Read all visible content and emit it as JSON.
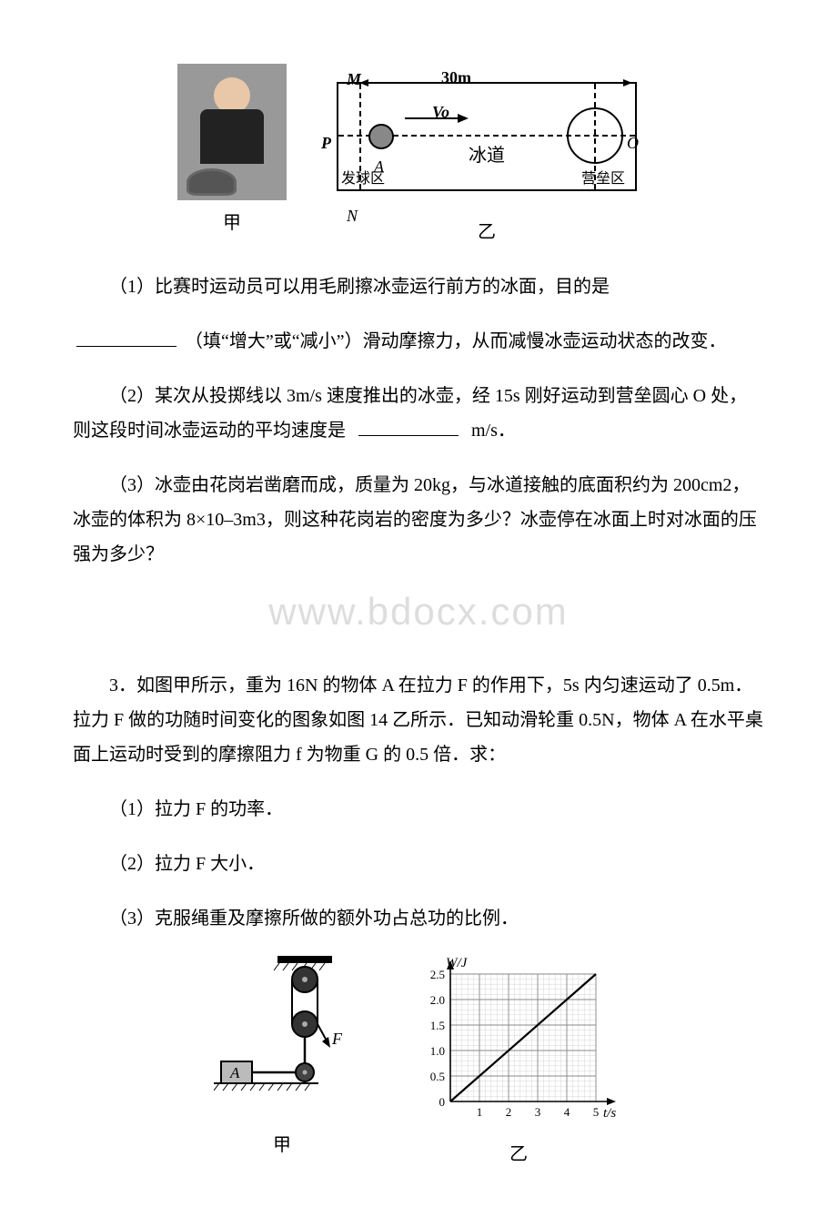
{
  "fig1": {
    "caption_left": "甲",
    "caption_right": "乙",
    "label_M": "M",
    "label_N": "N",
    "label_P": "P",
    "label_A": "A",
    "label_O": "O",
    "distance": "30m",
    "velocity": "Vo",
    "text_icetrack": "冰道",
    "text_launch": "发球区",
    "text_camp": "营垒区"
  },
  "q2": {
    "p1_prefix": "（1）比赛时运动员可以用毛刷擦冰壶运行前方的冰面，目的是",
    "p1_hint": "（填“增大”或“减小”）滑动摩擦力，从而减慢冰壶运动状态的改变．",
    "p2_a": "（2）某次从投掷线以 3m/s 速度推出的冰壶，经 15s 刚好运动到营垒圆心 O 处，则这段时间冰壶运动的平均速度是",
    "p2_unit": "m/s．",
    "p3": "（3）冰壶由花岗岩凿磨而成，质量为 20kg，与冰道接触的底面积约为 200cm2，冰壶的体积为 8×10–3m3，则这种花岗岩的密度为多少？冰壶停在冰面上时对冰面的压强为多少？"
  },
  "watermark": "www.bdocx.com",
  "q3": {
    "stem": "3．如图甲所示，重为 16N 的物体 A 在拉力 F 的作用下，5s 内匀速运动了 0.5m．拉力 F 做的功随时间变化的图象如图 14 乙所示．已知动滑轮重 0.5N，物体 A 在水平桌面上运动时受到的摩擦阻力 f 为物重 G 的 0.5 倍．求：",
    "p1": "（1）拉力 F 的功率．",
    "p2": "（2）拉力 F 大小．",
    "p3": "（3）克服绳重及摩擦所做的额外功占总功的比例．",
    "caption_left": "甲",
    "caption_right": "乙"
  },
  "graph": {
    "y_label": "W/J",
    "x_label": "t/s",
    "x_ticks": [
      "1",
      "2",
      "3",
      "4",
      "5"
    ],
    "y_ticks": [
      "0",
      "0.5",
      "1.0",
      "1.5",
      "2.0",
      "2.5"
    ],
    "xmax": 5,
    "ymax": 2.5,
    "line": {
      "x1": 0,
      "y1": 0,
      "x2": 5,
      "y2": 2.5,
      "color": "#000"
    },
    "grid_color": "#888",
    "minor_color": "#cccccc",
    "bg": "#ffffff"
  },
  "pulley": {
    "label_A": "A",
    "label_F": "F"
  }
}
